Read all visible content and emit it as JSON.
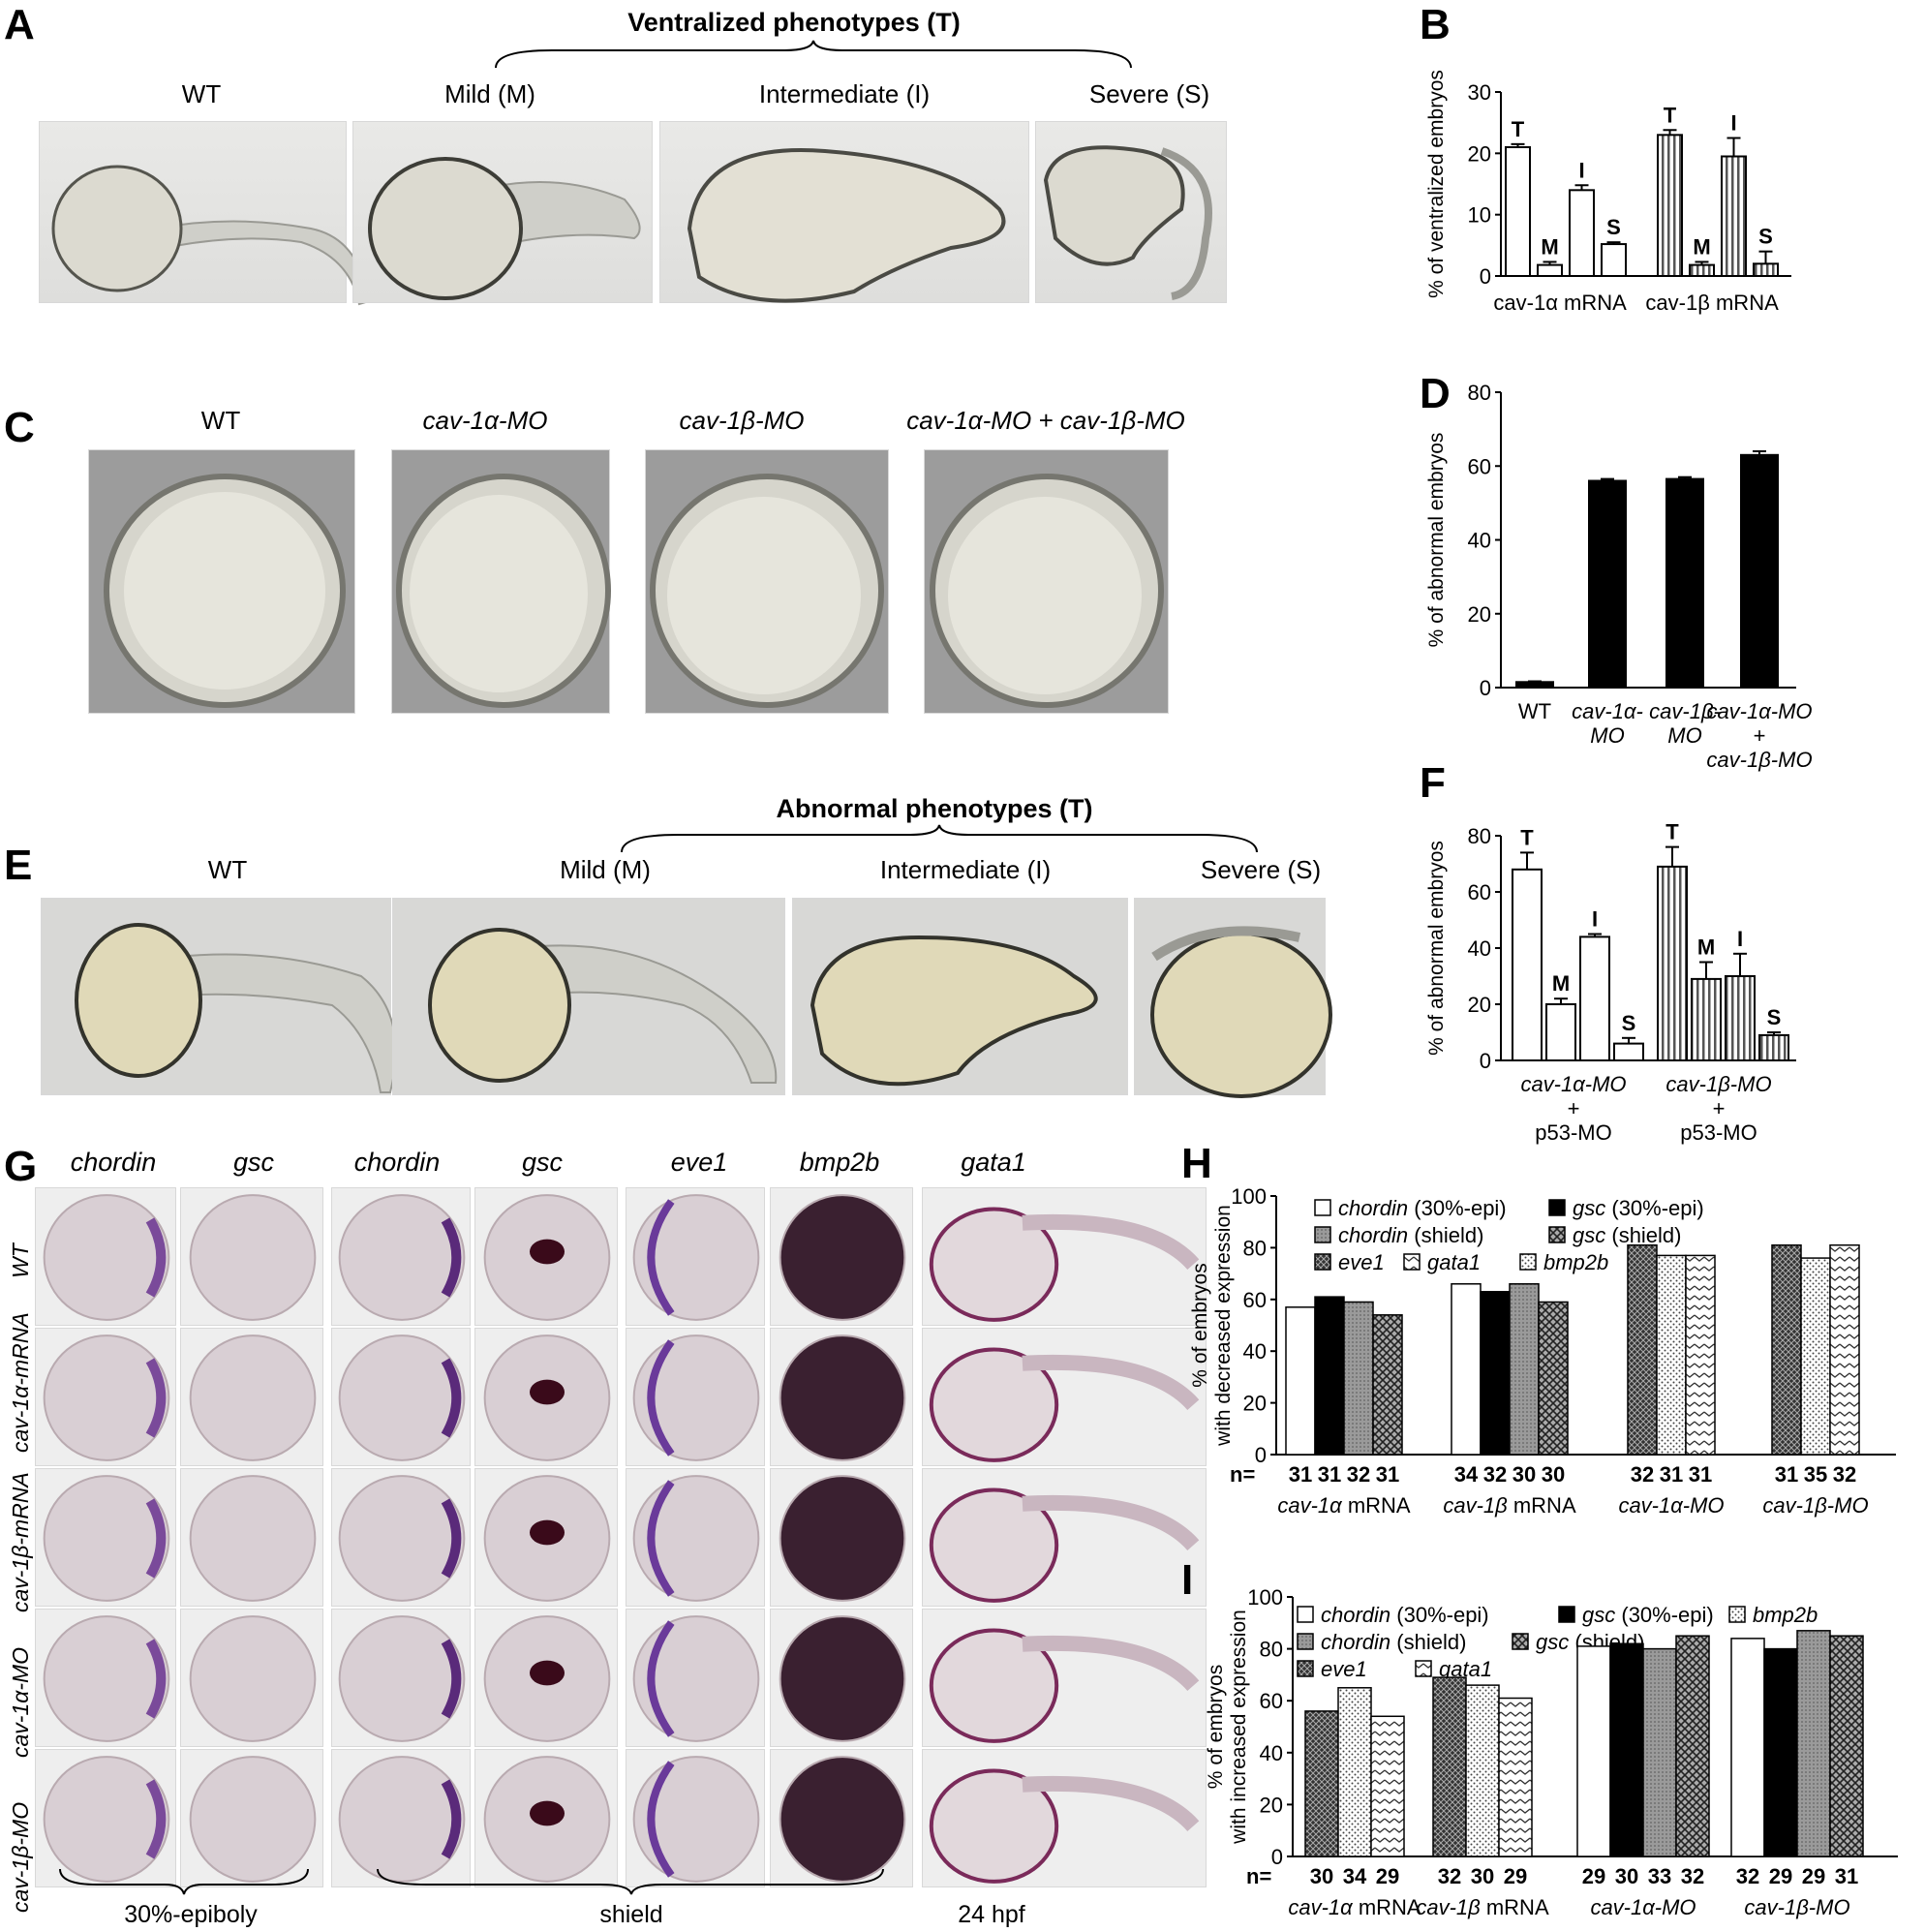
{
  "panels": {
    "A": {
      "label": "A",
      "header": "Ventralized phenotypes (T)",
      "captions": [
        "WT",
        "Mild (M)",
        "Intermediate (I)",
        "Severe (S)"
      ]
    },
    "B": {
      "label": "B"
    },
    "C": {
      "label": "C",
      "captions": [
        "WT",
        "cav-1α-MO",
        "cav-1β-MO",
        "cav-1α-MO + cav-1β-MO"
      ]
    },
    "D": {
      "label": "D"
    },
    "E": {
      "label": "E",
      "header": "Abnormal phenotypes (T)",
      "captions": [
        "WT",
        "Mild (M)",
        "Intermediate (I)",
        "Severe (S)"
      ]
    },
    "F": {
      "label": "F"
    },
    "G": {
      "label": "G",
      "columns": [
        "chordin",
        "gsc",
        "chordin",
        "gsc",
        "eve1",
        "bmp2b",
        "gata1"
      ],
      "rows": [
        "WT",
        "cav-1α-mRNA",
        "cav-1β-mRNA",
        "cav-1α-MO",
        "cav-1β-MO"
      ],
      "stages": [
        "30%-epiboly",
        "shield",
        "24 hpf"
      ]
    },
    "H": {
      "label": "H"
    },
    "I": {
      "label": "I"
    }
  },
  "chart_data": [
    {
      "panel": "B",
      "type": "bar",
      "ylabel": "% of ventralized embryos",
      "ylim": [
        0,
        30
      ],
      "yticks": [
        0,
        10,
        20,
        30
      ],
      "groups": [
        "cav-1α mRNA",
        "cav-1β mRNA"
      ],
      "bar_labels": [
        "T",
        "M",
        "I",
        "S"
      ],
      "series": [
        {
          "group": "cav-1α mRNA",
          "fill": "white",
          "values": [
            21,
            1.8,
            14,
            5.2
          ],
          "errors": [
            0.5,
            0.5,
            0.8,
            0.3
          ]
        },
        {
          "group": "cav-1β mRNA",
          "fill": "vertical-stripes",
          "values": [
            23,
            1.8,
            19.5,
            2
          ],
          "errors": [
            0.8,
            0.5,
            3,
            2
          ]
        }
      ]
    },
    {
      "panel": "D",
      "type": "bar",
      "ylabel": "% of abnormal embryos",
      "ylim": [
        0,
        80
      ],
      "yticks": [
        0,
        20,
        40,
        60,
        80
      ],
      "categories": [
        "WT",
        "cav-1α-MO",
        "cav-1β-MO",
        "cav-1α-MO + cav-1β-MO"
      ],
      "category_lines": [
        [
          "WT"
        ],
        [
          "cav-1α-",
          "MO"
        ],
        [
          "cav-1β-",
          "MO"
        ],
        [
          "cav-1α-MO",
          "+",
          "cav-1β-MO"
        ]
      ],
      "values": [
        1.5,
        56,
        56.5,
        63
      ],
      "errors": [
        0.2,
        0.5,
        0.5,
        1
      ]
    },
    {
      "panel": "F",
      "type": "bar",
      "ylabel": "% of abnormal embryos",
      "ylim": [
        0,
        80
      ],
      "yticks": [
        0,
        20,
        40,
        60,
        80
      ],
      "groups": [
        "cav-1α-MO + p53-MO",
        "cav-1β-MO + p53-MO"
      ],
      "group_lines": [
        [
          "cav-1α-MO",
          "+",
          "p53-MO"
        ],
        [
          "cav-1β-MO",
          "+",
          "p53-MO"
        ]
      ],
      "bar_labels": [
        "T",
        "M",
        "I",
        "S"
      ],
      "series": [
        {
          "group": "cav-1α-MO + p53-MO",
          "fill": "white",
          "values": [
            68,
            20,
            44,
            6
          ],
          "errors": [
            6,
            2,
            1,
            2
          ]
        },
        {
          "group": "cav-1β-MO + p53-MO",
          "fill": "vertical-stripes",
          "values": [
            69,
            29,
            30,
            9
          ],
          "errors": [
            7,
            6,
            8,
            1
          ]
        }
      ]
    },
    {
      "panel": "H",
      "type": "bar",
      "ylabel": "% of embryos with decreased expression",
      "ylim": [
        0,
        100
      ],
      "yticks": [
        0,
        20,
        40,
        60,
        80,
        100
      ],
      "legend": [
        "chordin (30%-epi)",
        "gsc (30%-epi)",
        "chordin (shield)",
        "gsc (shield)",
        "eve1",
        "gata1",
        "bmp2b"
      ],
      "groups": [
        {
          "name": "cav-1α mRNA",
          "bars": [
            {
              "s": "chordin (30%-epi)",
              "v": 57,
              "n": "31"
            },
            {
              "s": "gsc (30%-epi)",
              "v": 61,
              "n": "31"
            },
            {
              "s": "chordin (shield)",
              "v": 59,
              "n": "32"
            },
            {
              "s": "gsc (shield)",
              "v": 54,
              "n": "31"
            }
          ]
        },
        {
          "name": "cav-1β mRNA",
          "bars": [
            {
              "s": "chordin (30%-epi)",
              "v": 66,
              "n": "34"
            },
            {
              "s": "gsc (30%-epi)",
              "v": 63,
              "n": "32"
            },
            {
              "s": "chordin (shield)",
              "v": 66,
              "n": "30"
            },
            {
              "s": "gsc (shield)",
              "v": 59,
              "n": "30"
            }
          ]
        },
        {
          "name": "cav-1α-MO",
          "bars": [
            {
              "s": "eve1",
              "v": 81,
              "n": "32"
            },
            {
              "s": "bmp2b",
              "v": 77,
              "n": "31"
            },
            {
              "s": "gata1",
              "v": 77,
              "n": "31"
            }
          ]
        },
        {
          "name": "cav-1β-MO",
          "bars": [
            {
              "s": "eve1",
              "v": 81,
              "n": "31"
            },
            {
              "s": "bmp2b",
              "v": 76,
              "n": "35"
            },
            {
              "s": "gata1",
              "v": 81,
              "n": "32"
            }
          ]
        }
      ],
      "n_prefix": "n="
    },
    {
      "panel": "I",
      "type": "bar",
      "ylabel": "% of embryos with increased expression",
      "ylim": [
        0,
        100
      ],
      "yticks": [
        0,
        20,
        40,
        60,
        80,
        100
      ],
      "legend": [
        "chordin (30%-epi)",
        "gsc (30%-epi)",
        "bmp2b",
        "chordin (shield)",
        "gsc (shield)",
        "eve1",
        "gata1"
      ],
      "groups": [
        {
          "name": "cav-1α mRNA",
          "bars": [
            {
              "s": "eve1",
              "v": 56,
              "n": "30"
            },
            {
              "s": "bmp2b",
              "v": 65,
              "n": "34"
            },
            {
              "s": "gata1",
              "v": 54,
              "n": "29"
            }
          ]
        },
        {
          "name": "cav-1β mRNA",
          "bars": [
            {
              "s": "eve1",
              "v": 69,
              "n": "32"
            },
            {
              "s": "bmp2b",
              "v": 66,
              "n": "30"
            },
            {
              "s": "gata1",
              "v": 61,
              "n": "29"
            }
          ]
        },
        {
          "name": "cav-1α-MO",
          "bars": [
            {
              "s": "chordin (30%-epi)",
              "v": 81,
              "n": "29"
            },
            {
              "s": "gsc (30%-epi)",
              "v": 82,
              "n": "30"
            },
            {
              "s": "chordin (shield)",
              "v": 80,
              "n": "33"
            },
            {
              "s": "gsc (shield)",
              "v": 85,
              "n": "32"
            }
          ]
        },
        {
          "name": "cav-1β-MO",
          "bars": [
            {
              "s": "chordin (30%-epi)",
              "v": 84,
              "n": "32"
            },
            {
              "s": "gsc (30%-epi)",
              "v": 80,
              "n": "29"
            },
            {
              "s": "chordin (shield)",
              "v": 87,
              "n": "29"
            },
            {
              "s": "gsc (shield)",
              "v": 85,
              "n": "31"
            }
          ]
        }
      ],
      "n_prefix": "n="
    }
  ]
}
